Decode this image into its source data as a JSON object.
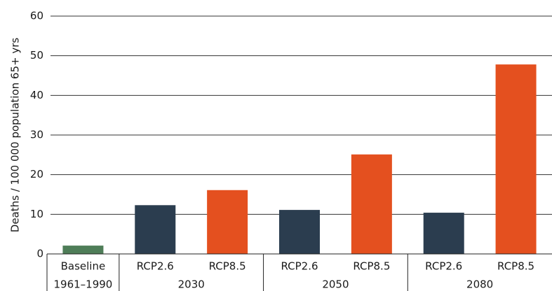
{
  "chart_data": {
    "type": "bar",
    "y_label": "Deaths / 100 000 population 65+ yrs",
    "groups": [
      {
        "label": "1961–1990",
        "categories": [
          "Baseline"
        ],
        "values": [
          2.1
        ],
        "colors": [
          "#4e7d58"
        ]
      },
      {
        "label": "2030",
        "categories": [
          "RCP2.6",
          "RCP8.5"
        ],
        "values": [
          12.3,
          16.1
        ],
        "colors": [
          "#2b3d4f",
          "#e4501f"
        ]
      },
      {
        "label": "2050",
        "categories": [
          "RCP2.6",
          "RCP8.5"
        ],
        "values": [
          11.1,
          25.1
        ],
        "colors": [
          "#2b3d4f",
          "#e4501f"
        ]
      },
      {
        "label": "2080",
        "categories": [
          "RCP2.6",
          "RCP8.5"
        ],
        "values": [
          10.4,
          47.8
        ],
        "colors": [
          "#2b3d4f",
          "#e4501f"
        ]
      }
    ],
    "ylim": [
      0,
      60
    ],
    "yticks": [
      0,
      10,
      20,
      30,
      40,
      50,
      60
    ],
    "grid": true
  }
}
